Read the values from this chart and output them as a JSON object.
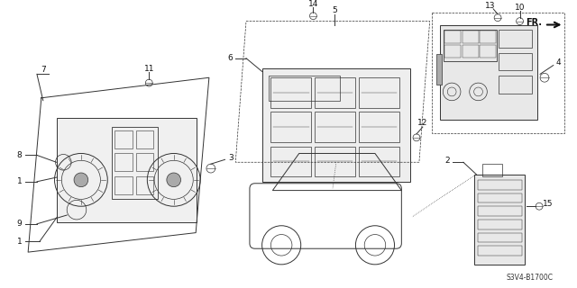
{
  "bg_color": "#ffffff",
  "diagram_code": "S3V4-B1700C",
  "fr_label": "FR.",
  "lc": "#333333",
  "tc": "#111111",
  "fig_width": 6.4,
  "fig_height": 3.2,
  "lw": 0.7,
  "fs": 6.5
}
